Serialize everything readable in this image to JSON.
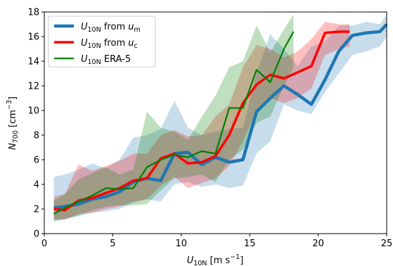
{
  "chart_data": {
    "type": "line",
    "xlabel": {
      "base": "U",
      "sub": "10N",
      "unit_pre": " [m s",
      "unit_sup": "−1",
      "unit_post": "]"
    },
    "ylabel": {
      "base": "N",
      "sub": "700",
      "unit_pre": " [cm",
      "unit_sup": "−3",
      "unit_post": "]"
    },
    "xlim": [
      0,
      25
    ],
    "ylim": [
      0,
      18
    ],
    "xticks": [
      0,
      5,
      10,
      15,
      20,
      25
    ],
    "yticks": [
      0,
      2,
      4,
      6,
      8,
      10,
      12,
      14,
      16,
      18
    ],
    "grid": false,
    "legend_position": "top-left",
    "series": [
      {
        "name": "U10N from um",
        "legend": {
          "base": "U",
          "sub": "10N",
          "mid": " from ",
          "var": "u",
          "varsub": "m"
        },
        "color": "#1f77b4",
        "line_width": 4.5,
        "band_opacity": 0.25,
        "x": [
          0.7,
          1.5,
          2.5,
          3.5,
          4.5,
          5.5,
          6.5,
          7.5,
          8.5,
          9.5,
          10.5,
          11.5,
          12.5,
          13.5,
          14.5,
          15.5,
          16.5,
          17.5,
          18.5,
          19.5,
          20.5,
          21.5,
          22.5,
          23.5,
          24.5,
          25.0
        ],
        "y": [
          2.1,
          2.2,
          2.4,
          2.8,
          3.0,
          3.4,
          4.2,
          4.5,
          4.3,
          6.5,
          6.6,
          5.6,
          6.2,
          5.8,
          6.0,
          9.9,
          11.0,
          12.0,
          11.3,
          10.5,
          12.5,
          14.8,
          16.1,
          16.3,
          16.4,
          17.0
        ],
        "low": [
          1.0,
          1.2,
          1.4,
          1.7,
          1.8,
          2.0,
          2.5,
          2.8,
          2.6,
          4.0,
          4.2,
          3.8,
          4.0,
          3.7,
          3.9,
          6.5,
          7.5,
          10.5,
          10.0,
          9.7,
          11.5,
          13.0,
          14.5,
          14.8,
          15.2,
          16.0
        ],
        "high": [
          4.6,
          4.8,
          5.2,
          5.7,
          5.3,
          6.0,
          7.8,
          8.0,
          8.5,
          10.8,
          8.6,
          8.0,
          8.3,
          8.5,
          8.6,
          13.0,
          16.2,
          15.0,
          13.6,
          15.2,
          15.6,
          16.9,
          16.9,
          17.2,
          17.0,
          17.8
        ]
      },
      {
        "name": "U10N from uc",
        "legend": {
          "base": "U",
          "sub": "10N",
          "mid": " from ",
          "var": "u",
          "varsub": "c"
        },
        "color": "#ff0000",
        "line_width": 3.5,
        "band_opacity": 0.25,
        "x": [
          0.7,
          1.5,
          2.5,
          3.5,
          4.5,
          5.5,
          6.5,
          7.5,
          8.5,
          9.5,
          10.5,
          11.5,
          12.5,
          13.5,
          14.5,
          15.5,
          16.5,
          17.5,
          18.5,
          19.5,
          20.5,
          21.5,
          22.3
        ],
        "y": [
          2.0,
          1.9,
          2.7,
          2.9,
          3.3,
          3.7,
          4.3,
          4.5,
          6.1,
          6.5,
          5.7,
          5.8,
          6.3,
          8.0,
          10.6,
          12.1,
          12.9,
          12.6,
          13.1,
          13.6,
          16.3,
          16.4,
          16.4
        ],
        "low": [
          1.2,
          1.1,
          1.6,
          1.7,
          2.0,
          2.2,
          2.6,
          2.8,
          3.9,
          4.6,
          3.7,
          4.1,
          4.5,
          5.5,
          7.5,
          10.0,
          11.0,
          10.6,
          11.0,
          11.8,
          14.5,
          15.0,
          15.2
        ],
        "high": [
          3.0,
          3.2,
          5.6,
          5.1,
          5.5,
          5.9,
          6.5,
          6.5,
          8.0,
          8.4,
          7.9,
          8.0,
          9.5,
          10.5,
          13.5,
          15.3,
          15.0,
          14.3,
          14.8,
          15.8,
          17.2,
          17.0,
          17.0
        ]
      },
      {
        "name": "U10N ERA-5",
        "legend": {
          "base": "U",
          "sub": "10N",
          "mid": " ERA-5",
          "var": "",
          "varsub": ""
        },
        "color": "#008000",
        "line_width": 2.2,
        "band_opacity": 0.25,
        "x": [
          0.7,
          1.5,
          2.5,
          3.5,
          4.5,
          5.5,
          6.5,
          7.5,
          8.5,
          9.5,
          10.5,
          11.5,
          12.5,
          13.5,
          14.5,
          15.5,
          16.5,
          17.5,
          18.2
        ],
        "y": [
          1.6,
          2.1,
          2.6,
          3.1,
          3.7,
          3.6,
          3.7,
          5.4,
          6.0,
          6.4,
          6.2,
          6.7,
          6.5,
          10.2,
          10.2,
          13.3,
          12.3,
          15.0,
          16.4
        ],
        "low": [
          1.0,
          1.2,
          1.5,
          1.9,
          2.2,
          2.3,
          2.3,
          2.4,
          3.5,
          4.5,
          4.6,
          4.8,
          4.2,
          6.0,
          6.8,
          9.0,
          9.5,
          12.0,
          13.5
        ],
        "high": [
          2.7,
          3.2,
          4.4,
          4.9,
          5.4,
          4.8,
          5.2,
          9.9,
          8.6,
          8.3,
          7.6,
          9.5,
          11.2,
          13.5,
          14.0,
          16.9,
          14.7,
          16.6,
          17.8
        ]
      }
    ]
  }
}
